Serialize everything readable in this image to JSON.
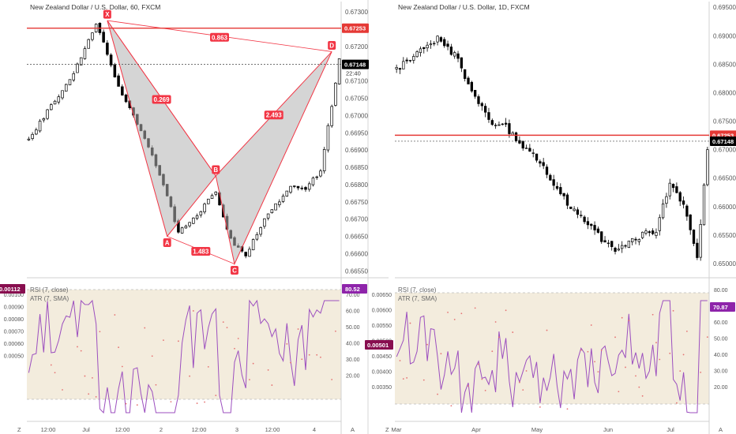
{
  "colors": {
    "background": "#ffffff",
    "candle": "#000000",
    "pattern_line": "#f23645",
    "pattern_fill": "#b2b2b2",
    "resistance": "#e53935",
    "rsi_line": "#9c4fbf",
    "atr_dots": "#e57373",
    "rsi_band": "#f3ecdd",
    "axis_text": "#555555",
    "grid": "#f0f0f0",
    "label_badge": "#f23645",
    "price_badge": "#000000",
    "atr_badge": "#880e4f",
    "rsi_badge": "#8e24aa"
  },
  "chart_data": [
    {
      "type": "candlestick",
      "title": "New Zealand Dollar / U.S. Dollar, 60, FXCM",
      "price_axis_ticks": [
        "0.67300",
        "0.67250",
        "0.67200",
        "0.67150",
        "0.67100",
        "0.67050",
        "0.67000",
        "0.66950",
        "0.66900",
        "0.66850",
        "0.66800",
        "0.66750",
        "0.66700",
        "0.66650",
        "0.66600",
        "0.66550"
      ],
      "ylim": [
        0.6653,
        0.6733
      ],
      "time_axis_ticks": [
        "12:00",
        "Jul",
        "12:00",
        "2",
        "12:00",
        "3",
        "12:00",
        "4"
      ],
      "price_marker": {
        "value": 0.67148,
        "label": "0.67148",
        "countdown": "22:40"
      },
      "resistance": {
        "value": 0.67253,
        "label": "0.67253"
      },
      "harmonic_pattern": {
        "points": [
          {
            "label": "X",
            "value": 0.67275
          },
          {
            "label": "A",
            "value": 0.6665
          },
          {
            "label": "B",
            "value": 0.66825
          },
          {
            "label": "C",
            "value": 0.6657
          },
          {
            "label": "D",
            "value": 0.67185
          }
        ],
        "ratios": [
          "0.863",
          "0.269",
          "2.493",
          "1.483"
        ]
      },
      "indicators": {
        "rsi_label": "RSI (7, close)",
        "atr_label": "ATR (7, SMA)",
        "atr_axis_ticks": [
          "0.00100",
          "0.00090",
          "0.00080",
          "0.00070",
          "0.00060",
          "0.00050"
        ],
        "rsi_axis_ticks": [
          "70.00",
          "60.00",
          "50.00",
          "40.00",
          "30.00",
          "20.00"
        ],
        "atr_current": "0.00112",
        "rsi_current": "80.52"
      },
      "corner_left": "Z",
      "corner_right": "A"
    },
    {
      "type": "candlestick",
      "title": "New Zealand Dollar / U.S. Dollar, 1D, FXCM",
      "price_axis_ticks": [
        "0.69500",
        "0.69000",
        "0.68500",
        "0.68000",
        "0.67500",
        "0.67000",
        "0.66500",
        "0.66000",
        "0.65500",
        "0.65000"
      ],
      "ylim": [
        0.6475,
        0.696
      ],
      "time_axis_ticks": [
        "Mar",
        "Apr",
        "May",
        "Jun",
        "Jul"
      ],
      "price_marker": {
        "value": 0.67148,
        "label": "0.67148"
      },
      "resistance": {
        "value": 0.67253,
        "label": "0.67253"
      },
      "indicators": {
        "rsi_label": "RSI (7, close)",
        "atr_label": "ATR (7, SMA)",
        "atr_axis_ticks": [
          "0.00650",
          "0.00600",
          "0.00550",
          "0.00500",
          "0.00450",
          "0.00400",
          "0.00350"
        ],
        "rsi_axis_ticks": [
          "80.00",
          "70.00",
          "60.00",
          "50.00",
          "40.00",
          "30.00",
          "20.00"
        ],
        "atr_current": "0.00501",
        "rsi_current": "70.87"
      },
      "corner_left": "Z",
      "corner_right": "A"
    }
  ]
}
